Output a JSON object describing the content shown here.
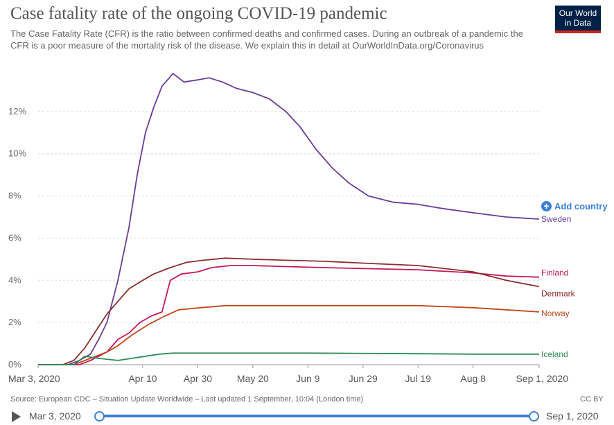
{
  "header": {
    "title": "Case fatality rate of the ongoing COVID-19 pandemic",
    "subtitle": "The Case Fatality Rate (CFR) is the ratio between confirmed deaths and confirmed cases. During an outbreak of a pandemic the CFR is a poor measure of the mortality risk of the disease. We explain this in detail at OurWorldInData.org/Coronavirus",
    "logo_line1": "Our World",
    "logo_line2": "in Data"
  },
  "controls": {
    "add_country_label": "Add country",
    "add_icon": "plus-circle-icon"
  },
  "footer": {
    "source": "Source: European CDC – Situation Update Worldwide – Last updated 1 September, 10:04 (London time)",
    "license": "CC BY"
  },
  "timeline": {
    "start_label": "Mar 3, 2020",
    "end_label": "Sep 1, 2020",
    "start_fraction": 0,
    "end_fraction": 1
  },
  "colors": {
    "accent": "#3c7fd6",
    "logo_bg": "#002147",
    "logo_bar": "#ce261e"
  },
  "chart_data": {
    "type": "line",
    "title": "Case fatality rate of the ongoing COVID-19 pandemic",
    "xlabel": "",
    "ylabel": "",
    "ylim": [
      0,
      14
    ],
    "y_ticks": [
      0,
      2,
      4,
      6,
      8,
      10,
      12
    ],
    "y_tick_labels": [
      "0%",
      "2%",
      "4%",
      "6%",
      "8%",
      "10%",
      "12%"
    ],
    "x_range": [
      "2020-03-03",
      "2020-09-01"
    ],
    "x_ticks": [
      "2020-03-03",
      "2020-04-10",
      "2020-04-30",
      "2020-05-20",
      "2020-06-09",
      "2020-06-29",
      "2020-07-19",
      "2020-08-08",
      "2020-09-01"
    ],
    "x_tick_labels": [
      "Mar 3, 2020",
      "Apr 10",
      "Apr 30",
      "May 20",
      "Jun 9",
      "Jun 29",
      "Jul 19",
      "Aug 8",
      "Sep 1, 2020"
    ],
    "grid": "horizontal dashed",
    "series": [
      {
        "name": "Sweden",
        "color": "#6a3d9a",
        "points": [
          [
            "2020-03-03",
            0
          ],
          [
            "2020-03-14",
            0
          ],
          [
            "2020-03-18",
            0.2
          ],
          [
            "2020-03-22",
            0.5
          ],
          [
            "2020-03-25",
            1.2
          ],
          [
            "2020-03-28",
            2
          ],
          [
            "2020-04-01",
            4
          ],
          [
            "2020-04-05",
            6.5
          ],
          [
            "2020-04-08",
            9
          ],
          [
            "2020-04-11",
            11
          ],
          [
            "2020-04-14",
            12.2
          ],
          [
            "2020-04-17",
            13.2
          ],
          [
            "2020-04-21",
            13.8
          ],
          [
            "2020-04-25",
            13.4
          ],
          [
            "2020-04-30",
            13.5
          ],
          [
            "2020-05-04",
            13.6
          ],
          [
            "2020-05-09",
            13.4
          ],
          [
            "2020-05-14",
            13.1
          ],
          [
            "2020-05-20",
            12.9
          ],
          [
            "2020-05-26",
            12.6
          ],
          [
            "2020-06-01",
            12.0
          ],
          [
            "2020-06-06",
            11.3
          ],
          [
            "2020-06-12",
            10.2
          ],
          [
            "2020-06-18",
            9.3
          ],
          [
            "2020-06-24",
            8.6
          ],
          [
            "2020-07-01",
            8.0
          ],
          [
            "2020-07-10",
            7.7
          ],
          [
            "2020-07-19",
            7.6
          ],
          [
            "2020-07-28",
            7.4
          ],
          [
            "2020-08-08",
            7.2
          ],
          [
            "2020-08-20",
            7.0
          ],
          [
            "2020-09-01",
            6.9
          ]
        ]
      },
      {
        "name": "Finland",
        "color": "#c2185b",
        "points": [
          [
            "2020-03-03",
            0
          ],
          [
            "2020-03-18",
            0
          ],
          [
            "2020-03-22",
            0.2
          ],
          [
            "2020-03-28",
            0.6
          ],
          [
            "2020-04-01",
            1.2
          ],
          [
            "2020-04-05",
            1.5
          ],
          [
            "2020-04-09",
            2
          ],
          [
            "2020-04-13",
            2.3
          ],
          [
            "2020-04-17",
            2.5
          ],
          [
            "2020-04-20",
            4
          ],
          [
            "2020-04-24",
            4.3
          ],
          [
            "2020-04-30",
            4.4
          ],
          [
            "2020-05-05",
            4.6
          ],
          [
            "2020-05-12",
            4.7
          ],
          [
            "2020-05-20",
            4.7
          ],
          [
            "2020-06-01",
            4.65
          ],
          [
            "2020-06-15",
            4.6
          ],
          [
            "2020-07-01",
            4.55
          ],
          [
            "2020-07-19",
            4.5
          ],
          [
            "2020-08-08",
            4.35
          ],
          [
            "2020-08-20",
            4.2
          ],
          [
            "2020-09-01",
            4.15
          ]
        ]
      },
      {
        "name": "Denmark",
        "color": "#8b2e2e",
        "points": [
          [
            "2020-03-03",
            0
          ],
          [
            "2020-03-12",
            0
          ],
          [
            "2020-03-16",
            0.2
          ],
          [
            "2020-03-20",
            0.8
          ],
          [
            "2020-03-24",
            1.6
          ],
          [
            "2020-03-28",
            2.4
          ],
          [
            "2020-04-01",
            3.0
          ],
          [
            "2020-04-05",
            3.6
          ],
          [
            "2020-04-10",
            4.0
          ],
          [
            "2020-04-14",
            4.3
          ],
          [
            "2020-04-20",
            4.6
          ],
          [
            "2020-04-26",
            4.85
          ],
          [
            "2020-05-02",
            4.95
          ],
          [
            "2020-05-10",
            5.05
          ],
          [
            "2020-05-20",
            5.0
          ],
          [
            "2020-06-01",
            4.95
          ],
          [
            "2020-06-15",
            4.9
          ],
          [
            "2020-07-01",
            4.8
          ],
          [
            "2020-07-19",
            4.7
          ],
          [
            "2020-08-08",
            4.4
          ],
          [
            "2020-08-20",
            4.0
          ],
          [
            "2020-09-01",
            3.7
          ]
        ]
      },
      {
        "name": "Norway",
        "color": "#c0461b",
        "points": [
          [
            "2020-03-03",
            0
          ],
          [
            "2020-03-16",
            0
          ],
          [
            "2020-03-20",
            0.2
          ],
          [
            "2020-03-24",
            0.4
          ],
          [
            "2020-03-28",
            0.6
          ],
          [
            "2020-04-01",
            0.9
          ],
          [
            "2020-04-06",
            1.4
          ],
          [
            "2020-04-12",
            1.9
          ],
          [
            "2020-04-18",
            2.3
          ],
          [
            "2020-04-23",
            2.6
          ],
          [
            "2020-05-01",
            2.7
          ],
          [
            "2020-05-10",
            2.8
          ],
          [
            "2020-05-20",
            2.8
          ],
          [
            "2020-06-09",
            2.8
          ],
          [
            "2020-07-01",
            2.8
          ],
          [
            "2020-07-19",
            2.8
          ],
          [
            "2020-08-08",
            2.7
          ],
          [
            "2020-09-01",
            2.5
          ]
        ]
      },
      {
        "name": "Iceland",
        "color": "#2e8b57",
        "points": [
          [
            "2020-03-03",
            0
          ],
          [
            "2020-03-16",
            0
          ],
          [
            "2020-03-20",
            0.4
          ],
          [
            "2020-03-25",
            0.3
          ],
          [
            "2020-04-01",
            0.2
          ],
          [
            "2020-04-06",
            0.3
          ],
          [
            "2020-04-11",
            0.4
          ],
          [
            "2020-04-16",
            0.5
          ],
          [
            "2020-04-21",
            0.55
          ],
          [
            "2020-05-01",
            0.55
          ],
          [
            "2020-05-20",
            0.55
          ],
          [
            "2020-06-09",
            0.55
          ],
          [
            "2020-07-19",
            0.52
          ],
          [
            "2020-08-08",
            0.5
          ],
          [
            "2020-09-01",
            0.5
          ]
        ]
      }
    ]
  }
}
